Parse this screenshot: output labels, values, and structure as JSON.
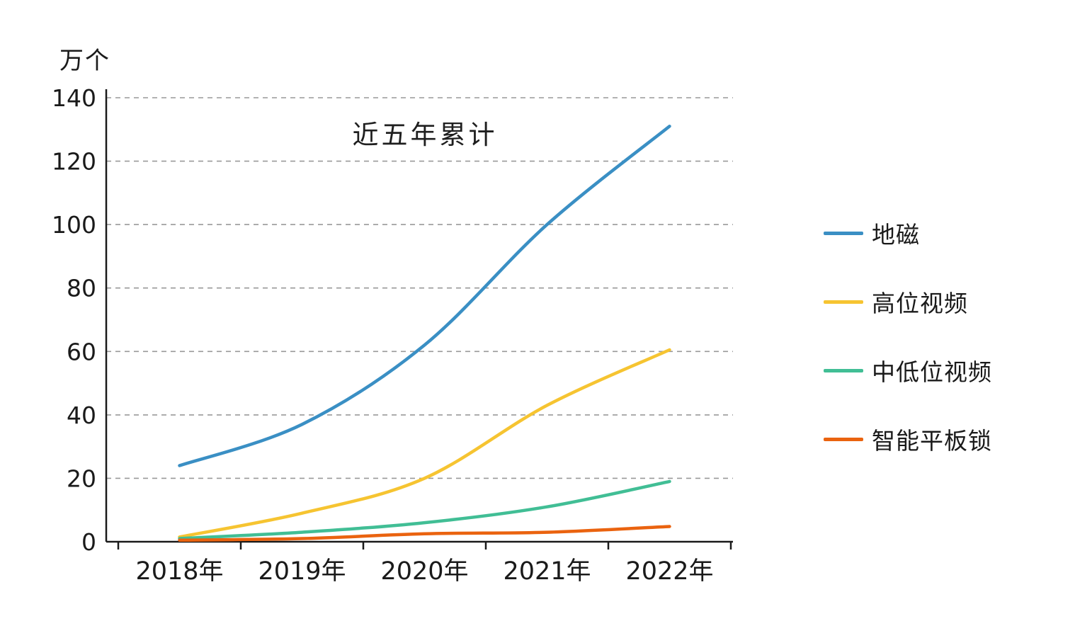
{
  "chart_data": {
    "type": "line",
    "title": "近五年累计",
    "unit_label": "万个",
    "categories": [
      "2018年",
      "2019年",
      "2020年",
      "2021年",
      "2022年"
    ],
    "series": [
      {
        "name": "地磁",
        "color": "#3A8FC4",
        "values": [
          24,
          37,
          62,
          100,
          131
        ]
      },
      {
        "name": "高位视频",
        "color": "#F6C431",
        "values": [
          1.5,
          9,
          20,
          43,
          60.5
        ]
      },
      {
        "name": "中低位视频",
        "color": "#41BE95",
        "values": [
          1,
          3,
          6,
          11,
          19
        ]
      },
      {
        "name": "智能平板锁",
        "color": "#EA630F",
        "values": [
          0.5,
          1,
          2.5,
          3,
          4.8
        ]
      }
    ],
    "ylim": [
      0,
      140
    ],
    "ytick_step": 20,
    "grid": "horizontal-dashed",
    "gridline_color": "#999999",
    "axis_color": "#1a1a1a",
    "legend_position": "right"
  }
}
